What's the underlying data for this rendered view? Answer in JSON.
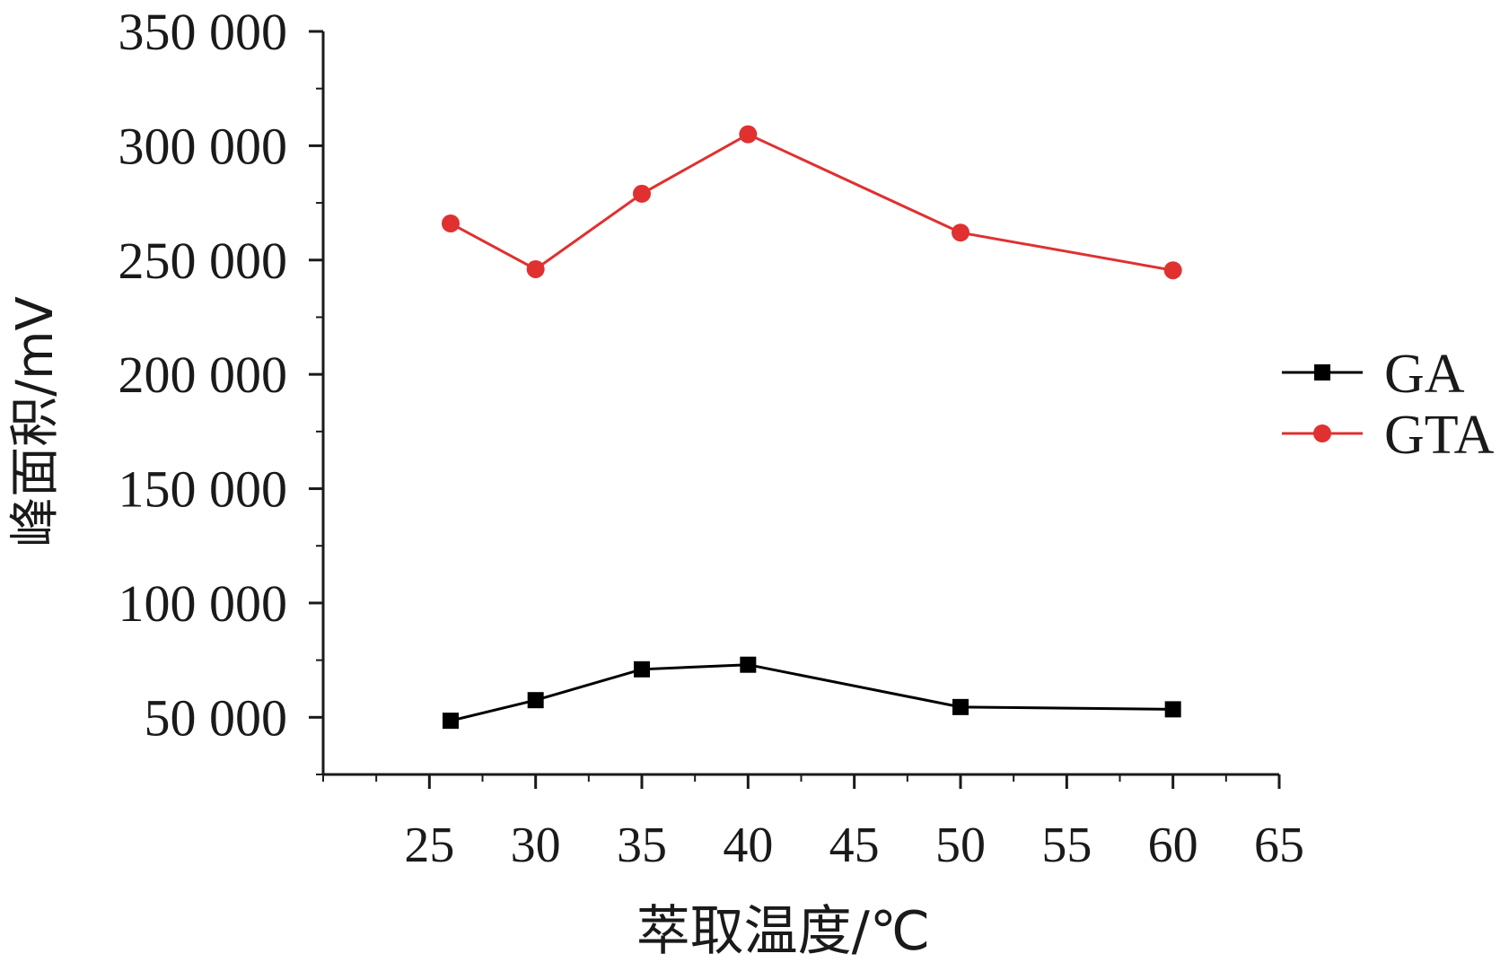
{
  "chart_data": {
    "type": "line",
    "xlabel": "萃取温度/℃",
    "ylabel": "峰面积/mV",
    "xlim": [
      20,
      65
    ],
    "ylim": [
      25000,
      350000
    ],
    "x_ticks": [
      25,
      30,
      35,
      40,
      45,
      50,
      55,
      60,
      65
    ],
    "x_tick_labels": [
      "25",
      "30",
      "35",
      "40",
      "45",
      "50",
      "55",
      "60",
      "65"
    ],
    "y_ticks": [
      50000,
      100000,
      150000,
      200000,
      250000,
      300000,
      350000
    ],
    "y_tick_labels": [
      "50 000",
      "100 000",
      "150 000",
      "200 000",
      "250 000",
      "300 000",
      "350 000"
    ],
    "legend_position": "right",
    "grid": false,
    "series": [
      {
        "name": "GA",
        "color": "#000000",
        "marker": "square",
        "x": [
          26,
          30,
          35,
          40,
          50,
          60
        ],
        "values": [
          48500,
          57500,
          71000,
          73000,
          54500,
          53500
        ]
      },
      {
        "name": "GTA",
        "color": "#e03030",
        "marker": "circle",
        "x": [
          26,
          30,
          35,
          40,
          50,
          60
        ],
        "values": [
          266000,
          246000,
          279000,
          305000,
          262000,
          245500
        ]
      }
    ]
  }
}
